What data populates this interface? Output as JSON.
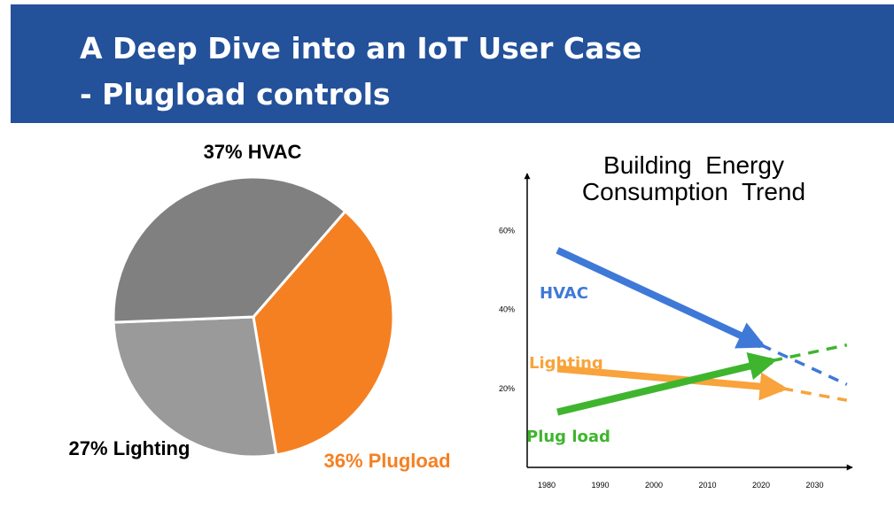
{
  "slide": {
    "title_line1": "A Deep Dive into an IoT User Case",
    "title_line2": "- Plugload controls",
    "header_color": "#23519A"
  },
  "chart_data": [
    {
      "type": "pie",
      "title": "",
      "slices": [
        {
          "label": "37% HVAC",
          "value": 37,
          "color": "#808080"
        },
        {
          "label": "36% Plugload",
          "value": 36,
          "color": "#F58022"
        },
        {
          "label": "27% Lighting",
          "value": 27,
          "color": "#9A9A9A"
        }
      ],
      "label_colors": {
        "HVAC": "#000000",
        "Plugload": "#F58022",
        "Lighting": "#000000"
      }
    },
    {
      "type": "line",
      "title_line1": "Building  Energy",
      "title_line2": "Consumption  Trend",
      "x_ticks": [
        "1980",
        "1990",
        "2000",
        "2010",
        "2020",
        "2030"
      ],
      "y_ticks": [
        "20%",
        "40%",
        "60%"
      ],
      "xlim": [
        1975,
        2036
      ],
      "ylim": [
        0,
        75
      ],
      "series": [
        {
          "name": "HVAC",
          "color": "#3F79D8",
          "solid": [
            [
              1982,
              55
            ],
            [
              2020,
              31
            ]
          ],
          "dashed": [
            [
              2020,
              31
            ],
            [
              2036,
              21
            ]
          ]
        },
        {
          "name": "Lighting",
          "color": "#F8A33B",
          "solid": [
            [
              1982,
              25
            ],
            [
              2024,
              20
            ]
          ],
          "dashed": [
            [
              2024,
              20
            ],
            [
              2036,
              17
            ]
          ]
        },
        {
          "name": "Plug load",
          "color": "#3FB52E",
          "solid": [
            [
              1982,
              14
            ],
            [
              2022,
              27
            ]
          ],
          "dashed": [
            [
              2022,
              27
            ],
            [
              2036,
              31
            ]
          ]
        }
      ]
    }
  ]
}
